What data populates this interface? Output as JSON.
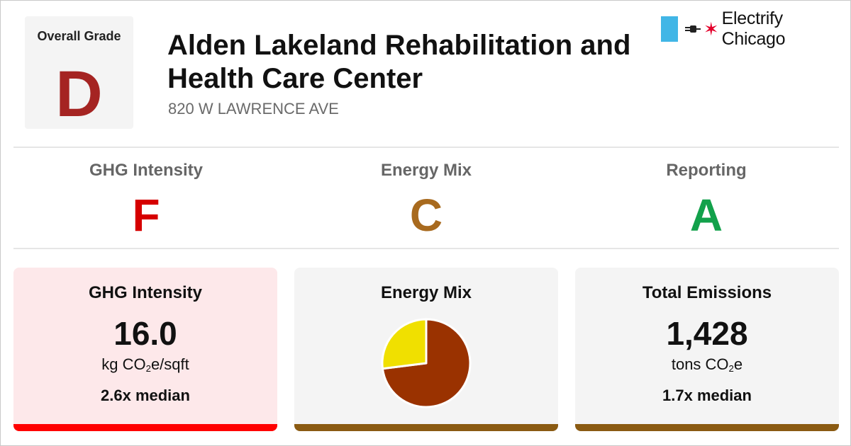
{
  "colors": {
    "grade_d": "#a52422",
    "grade_f": "#d60000",
    "grade_c": "#a86a1e",
    "grade_a": "#12a14b",
    "flag_blue": "#41b6e6",
    "star_red": "#e4002b",
    "card_pink_bg": "#fde8ea",
    "card_grey_bg": "#f4f4f4",
    "bar_red": "#ff0000",
    "bar_brown": "#8a5a12",
    "pie_electric": "#f0e000",
    "pie_gas": "#9a3200"
  },
  "header": {
    "overall_label": "Overall Grade",
    "overall_grade": "D",
    "title": "Alden Lakeland Rehabilitation and Health Care Center",
    "address": "820 W LAWRENCE AVE",
    "brand_name": "Electrify Chicago",
    "brand_icons": [
      "chicago-flag-icon",
      "plug-icon",
      "star-icon"
    ]
  },
  "subgrades": [
    {
      "label": "GHG Intensity",
      "grade": "F"
    },
    {
      "label": "Energy Mix",
      "grade": "C"
    },
    {
      "label": "Reporting",
      "grade": "A"
    }
  ],
  "cards": {
    "ghg": {
      "title": "GHG Intensity",
      "value": "16.0",
      "unit_prefix": "kg CO",
      "unit_sub": "2",
      "unit_suffix": "e/sqft",
      "median": "2.6x median"
    },
    "mix": {
      "title": "Energy Mix",
      "pie_fractions": {
        "electric": 0.27,
        "gas": 0.73
      }
    },
    "total": {
      "title": "Total Emissions",
      "value": "1,428",
      "unit_prefix": "tons CO",
      "unit_sub": "2",
      "unit_suffix": "e",
      "median": "1.7x median"
    }
  }
}
